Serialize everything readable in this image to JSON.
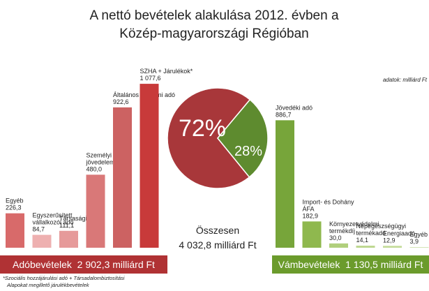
{
  "title": [
    "A nettó bevételek alakulása 2012. évben a",
    "Közép-magyarországi Régióban"
  ],
  "units_note": "adatok: milliárd Ft",
  "chart_data": [
    {
      "type": "bar",
      "categories": [
        [
          "Egyéb"
        ],
        [
          "Egyszerűsített",
          "vállalkozói adó"
        ],
        [
          "Társasági adó"
        ],
        [
          "Személyi",
          "jövedelemadó"
        ],
        [
          "Általános forgalmi adó"
        ],
        [
          "SZHA + Járulékok*"
        ]
      ],
      "values": [
        226.3,
        84.7,
        111.1,
        480.0,
        922.6,
        1077.6
      ],
      "value_labels": [
        "226,3",
        "84,7",
        "111,1",
        "480,0",
        "922,6",
        "1 077,6"
      ],
      "colors": [
        "#d86a6a",
        "#eeb0b0",
        "#e69a9a",
        "#d97878",
        "#cc6262",
        "#c83a3a"
      ],
      "banner": "Adóbevételek  2 902,3 milliárd Ft"
    },
    {
      "type": "pie",
      "values": [
        72,
        28
      ],
      "value_labels": [
        "72%",
        "28%"
      ],
      "colors": [
        "#a8373a",
        "#5e8b2f"
      ],
      "center_label": [
        "Összesen",
        "4 032,8 milliárd Ft"
      ]
    },
    {
      "type": "bar",
      "categories": [
        [
          "Jövedéki adó"
        ],
        [
          "Import- és Dohány",
          "ÁFA"
        ],
        [
          "Környezetvédelmi",
          "termékdíj"
        ],
        [
          "Népegészségügyi",
          "termékadó"
        ],
        [
          "Energiaadó"
        ],
        [
          "Egyéb"
        ]
      ],
      "values": [
        886.7,
        182.9,
        30.0,
        14.1,
        12.9,
        3.9
      ],
      "value_labels": [
        "886,7",
        "182,9",
        "30,0",
        "14,1",
        "12,9",
        "3,9"
      ],
      "colors": [
        "#77a53a",
        "#8fb84e",
        "#b0cf7c",
        "#bcd78e",
        "#c3db98",
        "#cadfa4"
      ],
      "banner": "Vámbevételek  1 130,5 milliárd Ft"
    }
  ],
  "footnote": [
    "*Szociális hozzájárulási adó + Társadalombiztosítási",
    "Alapokat megillető járulékbevételek"
  ]
}
